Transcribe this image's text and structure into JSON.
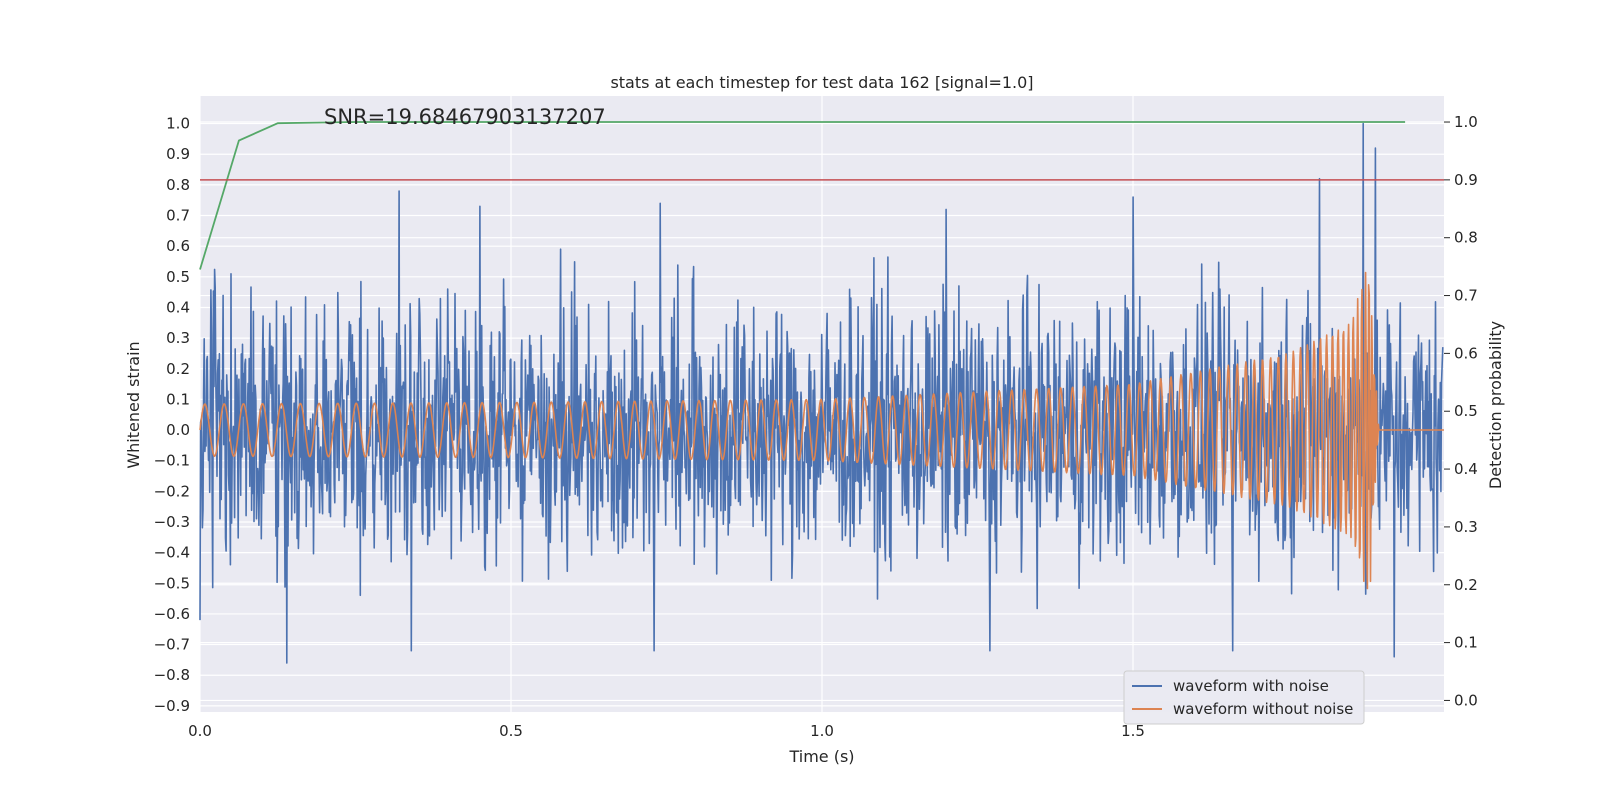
{
  "chart_data": {
    "type": "line",
    "title": "stats at each timestep for test data 162 [signal=1.0]",
    "annotation": "SNR=19.68467903137207",
    "xlabel": "Time (s)",
    "ylabel": "Whitened strain",
    "ylabel_right": "Detection probability",
    "xlim": [
      0.0,
      2.0
    ],
    "ylim": [
      -0.92,
      1.09
    ],
    "ylim_right": [
      -0.02,
      1.045
    ],
    "x_ticks": [
      0.0,
      0.5,
      1.0,
      1.5
    ],
    "x_tick_labels": [
      "0.0",
      "0.5",
      "1.0",
      "1.5"
    ],
    "y_ticks": [
      1.0,
      0.9,
      0.8,
      0.7,
      0.6,
      0.5,
      0.4,
      0.3,
      0.2,
      0.1,
      0.0,
      -0.1,
      -0.2,
      -0.3,
      -0.4,
      -0.5,
      -0.6,
      -0.7,
      -0.8,
      -0.9
    ],
    "y_tick_labels": [
      "1.0",
      "0.9",
      "0.8",
      "0.7",
      "0.6",
      "0.5",
      "0.4",
      "0.3",
      "0.2",
      "0.1",
      "0.0",
      "−0.1",
      "−0.2",
      "−0.3",
      "−0.4",
      "−0.5",
      "−0.6",
      "−0.7",
      "−0.8",
      "−0.9"
    ],
    "y_right_ticks": [
      1.0,
      0.9,
      0.8,
      0.7,
      0.6,
      0.5,
      0.4,
      0.3,
      0.2,
      0.1,
      0.0
    ],
    "y_right_tick_labels": [
      "1.0",
      "0.9",
      "0.8",
      "0.7",
      "0.6",
      "0.5",
      "0.4",
      "0.3",
      "0.2",
      "0.1",
      "0.0"
    ],
    "grid": true,
    "legend_position": "bottom-right",
    "series": [
      {
        "name": "waveform with noise",
        "color": "#4c72b0",
        "axis": "left",
        "kind": "noisy",
        "samples": 2048,
        "envelope": [
          {
            "x": 0.0,
            "y": -0.62
          },
          {
            "x": 0.05,
            "y": 0.51
          },
          {
            "x": 0.14,
            "y": -0.76
          },
          {
            "x": 0.32,
            "y": 0.78
          },
          {
            "x": 0.34,
            "y": -0.72
          },
          {
            "x": 0.45,
            "y": 0.73
          },
          {
            "x": 0.58,
            "y": 0.59
          },
          {
            "x": 0.73,
            "y": -0.72
          },
          {
            "x": 0.74,
            "y": 0.74
          },
          {
            "x": 1.2,
            "y": 0.72
          },
          {
            "x": 1.27,
            "y": -0.72
          },
          {
            "x": 1.5,
            "y": 0.76
          },
          {
            "x": 1.66,
            "y": -0.72
          },
          {
            "x": 1.8,
            "y": 0.82
          },
          {
            "x": 1.87,
            "y": 1.0
          },
          {
            "x": 1.89,
            "y": 0.92
          },
          {
            "x": 1.92,
            "y": -0.74
          }
        ]
      },
      {
        "name": "waveform without noise",
        "color": "#dd8452",
        "axis": "left",
        "kind": "chirp",
        "samples": 2048,
        "envelope": [
          {
            "x": 0.0,
            "y": 0.085
          },
          {
            "x": 0.5,
            "y": 0.09
          },
          {
            "x": 1.0,
            "y": 0.1
          },
          {
            "x": 1.5,
            "y": 0.15
          },
          {
            "x": 1.75,
            "y": 0.25
          },
          {
            "x": 1.85,
            "y": 0.35
          },
          {
            "x": 1.88,
            "y": 0.56
          },
          {
            "x": 1.895,
            "y": 0.0
          },
          {
            "x": 2.0,
            "y": 0.0
          }
        ]
      },
      {
        "name": "",
        "color": "#55a868",
        "axis": "right",
        "kind": "line",
        "x": [
          0.0,
          0.0625,
          0.125,
          0.1875,
          0.25,
          0.5,
          1.0,
          1.5,
          1.9375
        ],
        "y": [
          0.745,
          0.968,
          0.998,
          0.999,
          1.0,
          1.0,
          1.0,
          1.0,
          1.0
        ]
      },
      {
        "name": "",
        "color": "#c44e52",
        "axis": "right",
        "kind": "hline",
        "y": 0.9
      }
    ]
  }
}
